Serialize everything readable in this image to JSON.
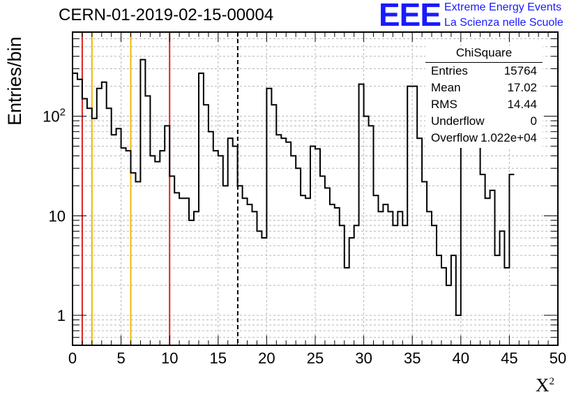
{
  "chart_data": {
    "type": "histogram",
    "title": "CERN-01-2019-02-15-00004",
    "xlabel": "X",
    "xlabel_superscript": "2",
    "ylabel": "Entries/bin",
    "xlim": [
      0,
      50
    ],
    "ylim": [
      0.5,
      700
    ],
    "yscale": "log",
    "grid": true,
    "bin_width": 0.5,
    "x_ticks": [
      "0",
      "5",
      "10",
      "15",
      "20",
      "25",
      "30",
      "35",
      "40",
      "45",
      "50"
    ],
    "y_ticks": [
      "1",
      "10",
      "10^2"
    ],
    "bin_contents": [
      270,
      235,
      150,
      120,
      95,
      190,
      220,
      120,
      65,
      75,
      48,
      45,
      27,
      22,
      370,
      160,
      40,
      35,
      45,
      80,
      25,
      17,
      15,
      15,
      9,
      11,
      270,
      130,
      70,
      45,
      40,
      20,
      60,
      50,
      20,
      15,
      13,
      11,
      7,
      6,
      190,
      130,
      65,
      60,
      55,
      40,
      30,
      16,
      15,
      50,
      47,
      25,
      19,
      13,
      12,
      8,
      3,
      6,
      8,
      210,
      100,
      80,
      16,
      11,
      13,
      11,
      8,
      11,
      8,
      200,
      200,
      60,
      22,
      11,
      8,
      4,
      3,
      2,
      4,
      1,
      200,
      115,
      130,
      70,
      26,
      15,
      18,
      4,
      7,
      3,
      26
    ],
    "vertical_markers": [
      {
        "x": 1,
        "color": "#dd2222",
        "style": "solid"
      },
      {
        "x": 2,
        "color": "#f0b800",
        "style": "solid"
      },
      {
        "x": 6,
        "color": "#f0b800",
        "style": "solid"
      },
      {
        "x": 10,
        "color": "#dd2222",
        "style": "solid"
      },
      {
        "x": 17.02,
        "color": "#000000",
        "style": "dashed"
      }
    ],
    "stats": {
      "name": "ChiSquare",
      "rows": [
        {
          "label": "Entries",
          "value": "15764"
        },
        {
          "label": "Mean",
          "value": "17.02"
        },
        {
          "label": "RMS",
          "value": "14.44"
        },
        {
          "label": "Underflow",
          "value": "0"
        },
        {
          "label": "Overflow",
          "value": "1.022e+04"
        }
      ]
    }
  },
  "branding": {
    "logo": "EEE",
    "line1": "Extreme Energy Events",
    "line2": "La Scienza nelle Scuole",
    "color": "#1a1aff"
  }
}
